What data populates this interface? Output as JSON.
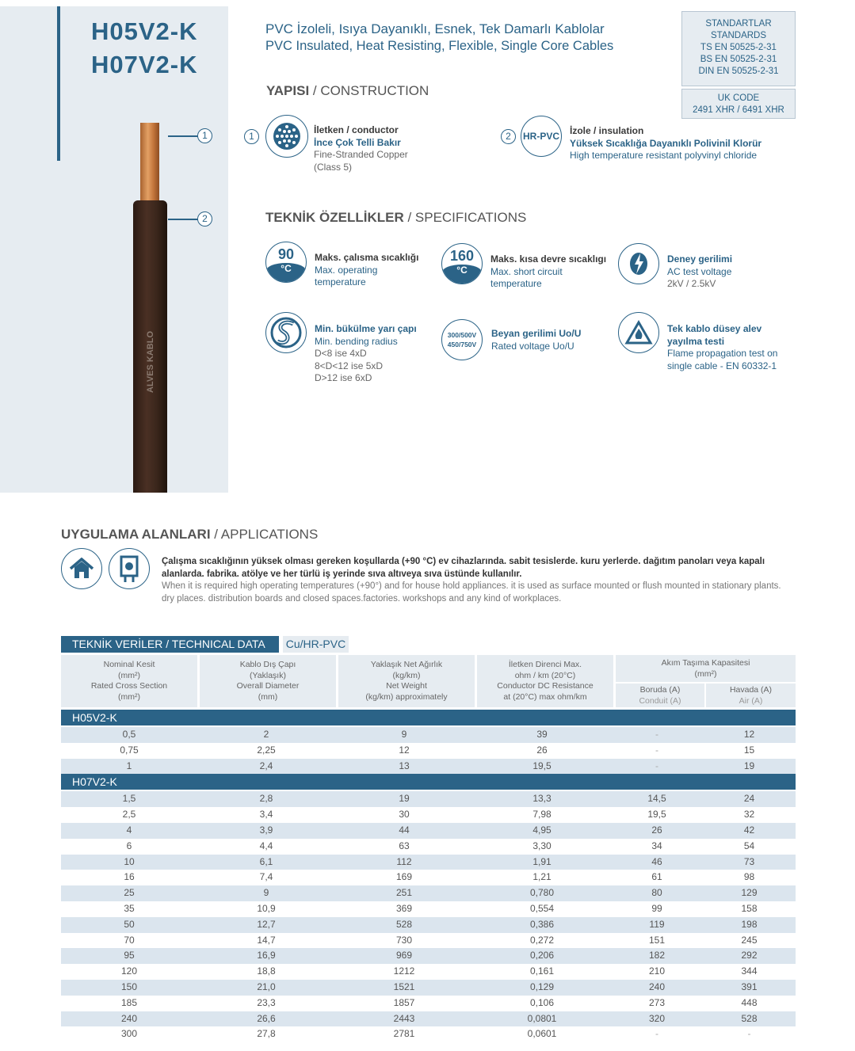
{
  "product": {
    "models": [
      "H05V2-K",
      "H07V2-K"
    ],
    "brand": "ALVES KABLO"
  },
  "header": {
    "title_tr": "PVC İzoleli, Isıya Dayanıklı, Esnek, Tek Damarlı Kablolar",
    "title_en": "PVC Insulated, Heat Resisting, Flexible, Single Core Cables"
  },
  "standards": {
    "title_tr": "STANDARTLAR",
    "title_en": "STANDARDS",
    "items": [
      "TS EN 50525-2-31",
      "BS EN 50525-2-31",
      "DIN EN 50525-2-31"
    ]
  },
  "ukcode": {
    "label": "UK CODE",
    "value": "2491 XHR / 6491 XHR"
  },
  "construction": {
    "title_bold": "YAPISI",
    "title_rest": " / CONSTRUCTION",
    "items": [
      {
        "num": "1",
        "icon": "stranded-copper-icon",
        "h": "İletken / conductor",
        "tr": "İnce Çok Telli Bakır",
        "en": "Fine-Stranded Copper",
        "en2": "(Class 5)"
      },
      {
        "num": "2",
        "icon_text": "HR-PVC",
        "h": "İzole / insulation",
        "tr": "Yüksek Sıcaklığa Dayanıklı Polivinil Klorür",
        "en": "High temperature resistant polyvinyl chloride"
      }
    ]
  },
  "specs": {
    "title_bold": "TEKNİK ÖZELLİKLER",
    "title_rest": " / SPECIFICATIONS",
    "items": [
      {
        "icon_value": "90",
        "icon_unit": "°C",
        "h": "Maks. çalısma sıcaklığı",
        "l1": "Max. operating",
        "l2": "temperature"
      },
      {
        "icon_value": "160",
        "icon_unit": "°C",
        "h": "Maks. kısa devre sıcaklıgı",
        "l1": "Max. short circuit",
        "l2": "temperature"
      },
      {
        "icon": "lightning-icon",
        "h": "Deney gerilimi",
        "l1": "AC test voltage",
        "l2": "2kV / 2.5kV"
      },
      {
        "icon": "bending-radius-icon",
        "h": "Min. bükülme yarı çapı",
        "l1": "Min. bending radius",
        "l2": "D<8 ise 4xD",
        "l3": "8<D<12 ise 5xD",
        "l4": "D>12 ise 6xD"
      },
      {
        "icon_v1": "300/500V",
        "icon_v2": "450/750V",
        "h": "Beyan gerilimi Uo/U",
        "l1": "Rated voltage Uo/U"
      },
      {
        "icon": "flame-warning-icon",
        "h": "Tek kablo düsey alev",
        "h2": "yayılma testi",
        "l1": "Flame propagation test on",
        "l2": "single cable - EN 60332-1"
      }
    ]
  },
  "applications": {
    "title_bold": "UYGULAMA ALANLARI",
    "title_rest": " / APPLICATIONS",
    "tr": "Çalışma sıcaklığının yüksek olması gereken koşullarda (+90 °C) ev cihazlarında. sabit tesislerde. kuru yerlerde. dağıtım panoları veya kapalı alanlarda. fabrika. atölye ve her türlü iş yerinde sıva altıveya sıva üstünde kullanılır.",
    "en": "When it is required high operating temperatures (+90°) and for house hold appliances. it is used as surface mounted or flush mounted in stationary plants. dry places. distribution boards and closed spaces.factories. workshops and any kind of workplaces."
  },
  "table": {
    "title": "TEKNİK VERİLER / TECHNICAL DATA",
    "material": "Cu/HR-PVC",
    "headers": [
      [
        "Nominal Kesit",
        "(mm²)",
        "Rated Cross Section",
        "(mm²)"
      ],
      [
        "Kablo Dış Çapı",
        "(Yaklaşık)",
        "Overall Diameter",
        "(mm)"
      ],
      [
        "Yaklaşık Net Ağırlık",
        "(kg/km)",
        "Net Weight",
        "(kg/km) approximately"
      ],
      [
        "İletken Direnci Max.",
        "ohm / km (20°C)",
        "Conductor DC Resistance",
        "at (20°C) max ohm/km"
      ]
    ],
    "current_header": [
      "Akım Taşıma Kapasitesi",
      "(mm²)"
    ],
    "sub_headers": [
      [
        "Boruda (A)",
        "Conduit (A)"
      ],
      [
        "Havada (A)",
        "Air (A)"
      ]
    ],
    "groups": [
      {
        "name": "H05V2-K",
        "rows": [
          [
            "0,5",
            "2",
            "9",
            "39",
            "-",
            "12"
          ],
          [
            "0,75",
            "2,25",
            "12",
            "26",
            "-",
            "15"
          ],
          [
            "1",
            "2,4",
            "13",
            "19,5",
            "-",
            "19"
          ]
        ]
      },
      {
        "name": "H07V2-K",
        "rows": [
          [
            "1,5",
            "2,8",
            "19",
            "13,3",
            "14,5",
            "24"
          ],
          [
            "2,5",
            "3,4",
            "30",
            "7,98",
            "19,5",
            "32"
          ],
          [
            "4",
            "3,9",
            "44",
            "4,95",
            "26",
            "42"
          ],
          [
            "6",
            "4,4",
            "63",
            "3,30",
            "34",
            "54"
          ],
          [
            "10",
            "6,1",
            "112",
            "1,91",
            "46",
            "73"
          ],
          [
            "16",
            "7,4",
            "169",
            "1,21",
            "61",
            "98"
          ],
          [
            "25",
            "9",
            "251",
            "0,780",
            "80",
            "129"
          ],
          [
            "35",
            "10,9",
            "369",
            "0,554",
            "99",
            "158"
          ],
          [
            "50",
            "12,7",
            "528",
            "0,386",
            "119",
            "198"
          ],
          [
            "70",
            "14,7",
            "730",
            "0,272",
            "151",
            "245"
          ],
          [
            "95",
            "16,9",
            "969",
            "0,206",
            "182",
            "292"
          ],
          [
            "120",
            "18,8",
            "1212",
            "0,161",
            "210",
            "344"
          ],
          [
            "150",
            "21,0",
            "1521",
            "0,129",
            "240",
            "391"
          ],
          [
            "185",
            "23,3",
            "1857",
            "0,106",
            "273",
            "448"
          ],
          [
            "240",
            "26,6",
            "2443",
            "0,0801",
            "320",
            "528"
          ],
          [
            "300",
            "27,8",
            "2781",
            "0,0601",
            "-",
            "-"
          ]
        ]
      }
    ]
  },
  "colors": {
    "primary": "#2b6387",
    "panel": "#e6ecf1",
    "row_alt": "#dbe5ee"
  }
}
